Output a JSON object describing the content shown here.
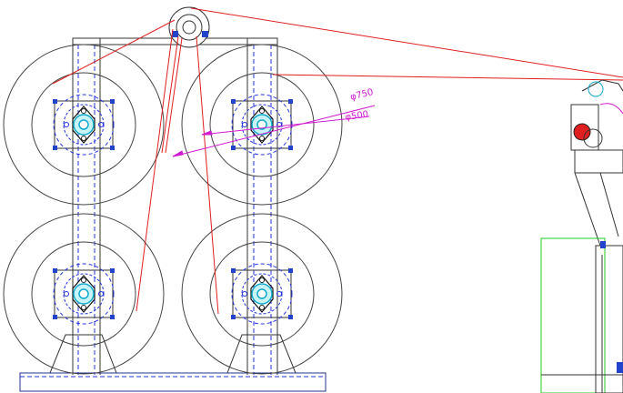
{
  "dimensions": [
    {
      "label": "φ750"
    },
    {
      "label": "φ500"
    }
  ]
}
